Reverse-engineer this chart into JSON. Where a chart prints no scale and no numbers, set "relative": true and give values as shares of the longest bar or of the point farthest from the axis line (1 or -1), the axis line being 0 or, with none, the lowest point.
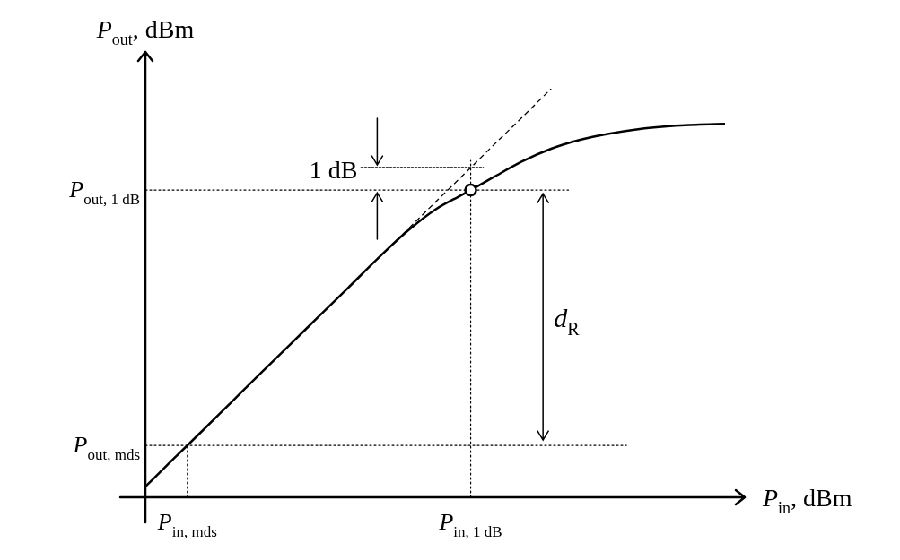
{
  "chart_data": {
    "type": "line",
    "relative": true,
    "xlabel": "P$_{in}$, dBm",
    "ylabel": "P$_{out}$, dBm",
    "categories": [
      null,
      null,
      null,
      null,
      null,
      null,
      null,
      null,
      null,
      null,
      null,
      null,
      null,
      null,
      null,
      null,
      null,
      null,
      null,
      null,
      null
    ],
    "series": [
      {
        "color": "#000000",
        "values": [
          0.026,
          0.096,
          0.165,
          0.235,
          0.305,
          0.374,
          0.444,
          0.513,
          0.583,
          0.649,
          0.704,
          0.743,
          0.783,
          0.822,
          0.853,
          0.875,
          0.89,
          0.901,
          0.908,
          0.912,
          0.914
        ]
      },
      {
        "color": "#000000",
        "line_style": "dashed",
        "values": [
          null,
          null,
          null,
          null,
          null,
          null,
          null,
          null,
          0.583,
          0.652,
          0.722,
          0.791,
          0.861,
          0.93,
          1,
          null,
          null,
          null,
          null,
          null,
          null
        ]
      }
    ],
    "ref_lines": [
      {
        "axis": "y",
        "value": 0.752,
        "label": "P$_{out, 1 dB}$",
        "line_style": "dotted"
      },
      {
        "axis": "y",
        "value": 0.127,
        "label": "P$_{out, mds}$",
        "line_style": "dotted"
      }
    ],
    "annotations": [
      "1 dB",
      "d$_{R}$",
      "P$_{in, mds}$",
      "P$_{in, 1 dB}$"
    ],
    "legend": false,
    "marker": "none"
  }
}
